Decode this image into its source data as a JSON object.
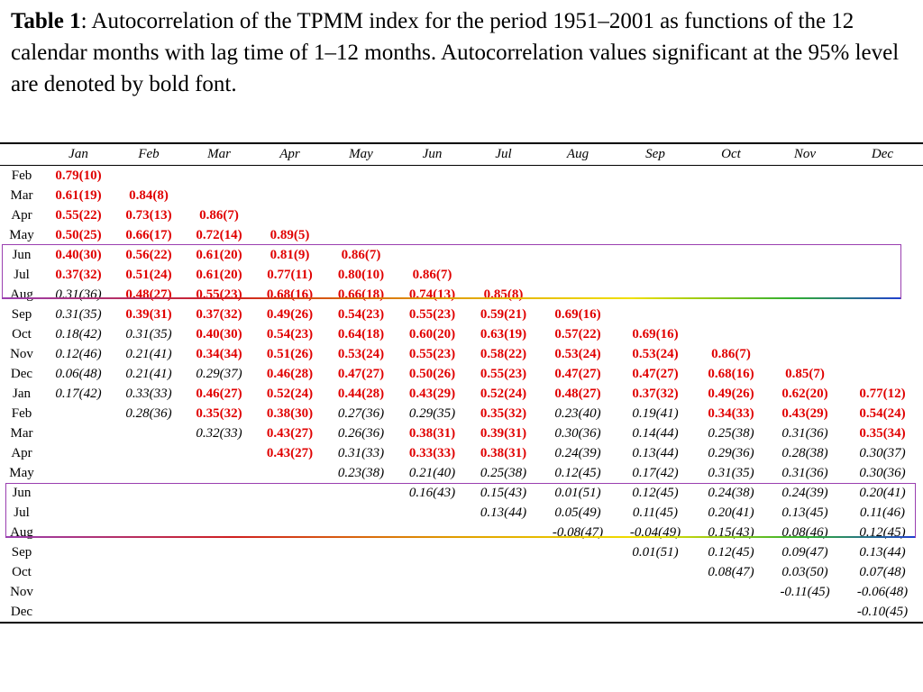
{
  "caption": {
    "label": "Table 1",
    "text": ": Autocorrelation of the TPMM index for the period 1951–2001 as functions of the 12 calendar months with lag time of 1‒12 months. Autocorrelation values significant at the 95% level are denoted by bold font."
  },
  "table": {
    "columns": [
      "Jan",
      "Feb",
      "Mar",
      "Apr",
      "May",
      "Jun",
      "Jul",
      "Aug",
      "Sep",
      "Oct",
      "Nov",
      "Dec"
    ],
    "rows": [
      {
        "label": "Feb",
        "cells": [
          [
            "0.79(10)",
            1
          ]
        ]
      },
      {
        "label": "Mar",
        "cells": [
          [
            "0.61(19)",
            1
          ],
          [
            "0.84(8)",
            1
          ]
        ]
      },
      {
        "label": "Apr",
        "cells": [
          [
            "0.55(22)",
            1
          ],
          [
            "0.73(13)",
            1
          ],
          [
            "0.86(7)",
            1
          ]
        ]
      },
      {
        "label": "May",
        "cells": [
          [
            "0.50(25)",
            1
          ],
          [
            "0.66(17)",
            1
          ],
          [
            "0.72(14)",
            1
          ],
          [
            "0.89(5)",
            1
          ]
        ]
      },
      {
        "label": "Jun",
        "cells": [
          [
            "0.40(30)",
            1
          ],
          [
            "0.56(22)",
            1
          ],
          [
            "0.61(20)",
            1
          ],
          [
            "0.81(9)",
            1
          ],
          [
            "0.86(7)",
            1
          ]
        ]
      },
      {
        "label": "Jul",
        "cells": [
          [
            "0.37(32)",
            1
          ],
          [
            "0.51(24)",
            1
          ],
          [
            "0.61(20)",
            1
          ],
          [
            "0.77(11)",
            1
          ],
          [
            "0.80(10)",
            1
          ],
          [
            "0.86(7)",
            1
          ]
        ]
      },
      {
        "label": "Aug",
        "cells": [
          [
            "0.31(36)",
            0
          ],
          [
            "0.48(27)",
            1
          ],
          [
            "0.55(23)",
            1
          ],
          [
            "0.68(16)",
            1
          ],
          [
            "0.66(18)",
            1
          ],
          [
            "0.74(13)",
            1
          ],
          [
            "0.85(8)",
            1
          ]
        ]
      },
      {
        "label": "Sep",
        "cells": [
          [
            "0.31(35)",
            0
          ],
          [
            "0.39(31)",
            1
          ],
          [
            "0.37(32)",
            1
          ],
          [
            "0.49(26)",
            1
          ],
          [
            "0.54(23)",
            1
          ],
          [
            "0.55(23)",
            1
          ],
          [
            "0.59(21)",
            1
          ],
          [
            "0.69(16)",
            1
          ]
        ]
      },
      {
        "label": "Oct",
        "cells": [
          [
            "0.18(42)",
            0
          ],
          [
            "0.31(35)",
            0
          ],
          [
            "0.40(30)",
            1
          ],
          [
            "0.54(23)",
            1
          ],
          [
            "0.64(18)",
            1
          ],
          [
            "0.60(20)",
            1
          ],
          [
            "0.63(19)",
            1
          ],
          [
            "0.57(22)",
            1
          ],
          [
            "0.69(16)",
            1
          ]
        ]
      },
      {
        "label": "Nov",
        "cells": [
          [
            "0.12(46)",
            0
          ],
          [
            "0.21(41)",
            0
          ],
          [
            "0.34(34)",
            1
          ],
          [
            "0.51(26)",
            1
          ],
          [
            "0.53(24)",
            1
          ],
          [
            "0.55(23)",
            1
          ],
          [
            "0.58(22)",
            1
          ],
          [
            "0.53(24)",
            1
          ],
          [
            "0.53(24)",
            1
          ],
          [
            "0.86(7)",
            1
          ]
        ]
      },
      {
        "label": "Dec",
        "cells": [
          [
            "0.06(48)",
            0
          ],
          [
            "0.21(41)",
            0
          ],
          [
            "0.29(37)",
            0
          ],
          [
            "0.46(28)",
            1
          ],
          [
            "0.47(27)",
            1
          ],
          [
            "0.50(26)",
            1
          ],
          [
            "0.55(23)",
            1
          ],
          [
            "0.47(27)",
            1
          ],
          [
            "0.47(27)",
            1
          ],
          [
            "0.68(16)",
            1
          ],
          [
            "0.85(7)",
            1
          ]
        ]
      },
      {
        "label": "Jan",
        "cells": [
          [
            "0.17(42)",
            0
          ],
          [
            "0.33(33)",
            0
          ],
          [
            "0.46(27)",
            1
          ],
          [
            "0.52(24)",
            1
          ],
          [
            "0.44(28)",
            1
          ],
          [
            "0.43(29)",
            1
          ],
          [
            "0.52(24)",
            1
          ],
          [
            "0.48(27)",
            1
          ],
          [
            "0.37(32)",
            1
          ],
          [
            "0.49(26)",
            1
          ],
          [
            "0.62(20)",
            1
          ],
          [
            "0.77(12)",
            1
          ]
        ]
      },
      {
        "label": "Feb",
        "cells": [
          [
            "",
            0
          ],
          [
            "0.28(36)",
            0
          ],
          [
            "0.35(32)",
            1
          ],
          [
            "0.38(30)",
            1
          ],
          [
            "0.27(36)",
            0
          ],
          [
            "0.29(35)",
            0
          ],
          [
            "0.35(32)",
            1
          ],
          [
            "0.23(40)",
            0
          ],
          [
            "0.19(41)",
            0
          ],
          [
            "0.34(33)",
            1
          ],
          [
            "0.43(29)",
            1
          ],
          [
            "0.54(24)",
            1
          ]
        ]
      },
      {
        "label": "Mar",
        "cells": [
          [
            "",
            0
          ],
          [
            "",
            0
          ],
          [
            "0.32(33)",
            0
          ],
          [
            "0.43(27)",
            1
          ],
          [
            "0.26(36)",
            0
          ],
          [
            "0.38(31)",
            1
          ],
          [
            "0.39(31)",
            1
          ],
          [
            "0.30(36)",
            0
          ],
          [
            "0.14(44)",
            0
          ],
          [
            "0.25(38)",
            0
          ],
          [
            "0.31(36)",
            0
          ],
          [
            "0.35(34)",
            1
          ]
        ]
      },
      {
        "label": "Apr",
        "cells": [
          [
            "",
            0
          ],
          [
            "",
            0
          ],
          [
            "",
            0
          ],
          [
            "0.43(27)",
            1
          ],
          [
            "0.31(33)",
            0
          ],
          [
            "0.33(33)",
            1
          ],
          [
            "0.38(31)",
            1
          ],
          [
            "0.24(39)",
            0
          ],
          [
            "0.13(44)",
            0
          ],
          [
            "0.29(36)",
            0
          ],
          [
            "0.28(38)",
            0
          ],
          [
            "0.30(37)",
            0
          ]
        ]
      },
      {
        "label": "May",
        "cells": [
          [
            "",
            0
          ],
          [
            "",
            0
          ],
          [
            "",
            0
          ],
          [
            "",
            0
          ],
          [
            "0.23(38)",
            0
          ],
          [
            "0.21(40)",
            0
          ],
          [
            "0.25(38)",
            0
          ],
          [
            "0.12(45)",
            0
          ],
          [
            "0.17(42)",
            0
          ],
          [
            "0.31(35)",
            0
          ],
          [
            "0.31(36)",
            0
          ],
          [
            "0.30(36)",
            0
          ]
        ]
      },
      {
        "label": "Jun",
        "cells": [
          [
            "",
            0
          ],
          [
            "",
            0
          ],
          [
            "",
            0
          ],
          [
            "",
            0
          ],
          [
            "",
            0
          ],
          [
            "0.16(43)",
            0
          ],
          [
            "0.15(43)",
            0
          ],
          [
            "0.01(51)",
            0
          ],
          [
            "0.12(45)",
            0
          ],
          [
            "0.24(38)",
            0
          ],
          [
            "0.24(39)",
            0
          ],
          [
            "0.20(41)",
            0
          ]
        ]
      },
      {
        "label": "Jul",
        "cells": [
          [
            "",
            0
          ],
          [
            "",
            0
          ],
          [
            "",
            0
          ],
          [
            "",
            0
          ],
          [
            "",
            0
          ],
          [
            "",
            0
          ],
          [
            "0.13(44)",
            0
          ],
          [
            "0.05(49)",
            0
          ],
          [
            "0.11(45)",
            0
          ],
          [
            "0.20(41)",
            0
          ],
          [
            "0.13(45)",
            0
          ],
          [
            "0.11(46)",
            0
          ]
        ]
      },
      {
        "label": "Aug",
        "cells": [
          [
            "",
            0
          ],
          [
            "",
            0
          ],
          [
            "",
            0
          ],
          [
            "",
            0
          ],
          [
            "",
            0
          ],
          [
            "",
            0
          ],
          [
            "",
            0
          ],
          [
            "-0.08(47)",
            0
          ],
          [
            "-0.04(49)",
            0
          ],
          [
            "0.15(43)",
            0
          ],
          [
            "0.08(46)",
            0
          ],
          [
            "0.12(45)",
            0
          ]
        ]
      },
      {
        "label": "Sep",
        "cells": [
          [
            "",
            0
          ],
          [
            "",
            0
          ],
          [
            "",
            0
          ],
          [
            "",
            0
          ],
          [
            "",
            0
          ],
          [
            "",
            0
          ],
          [
            "",
            0
          ],
          [
            "",
            0
          ],
          [
            "0.01(51)",
            0
          ],
          [
            "0.12(45)",
            0
          ],
          [
            "0.09(47)",
            0
          ],
          [
            "0.13(44)",
            0
          ]
        ]
      },
      {
        "label": "Oct",
        "cells": [
          [
            "",
            0
          ],
          [
            "",
            0
          ],
          [
            "",
            0
          ],
          [
            "",
            0
          ],
          [
            "",
            0
          ],
          [
            "",
            0
          ],
          [
            "",
            0
          ],
          [
            "",
            0
          ],
          [
            "",
            0
          ],
          [
            "0.08(47)",
            0
          ],
          [
            "0.03(50)",
            0
          ],
          [
            "0.07(48)",
            0
          ]
        ]
      },
      {
        "label": "Nov",
        "cells": [
          [
            "",
            0
          ],
          [
            "",
            0
          ],
          [
            "",
            0
          ],
          [
            "",
            0
          ],
          [
            "",
            0
          ],
          [
            "",
            0
          ],
          [
            "",
            0
          ],
          [
            "",
            0
          ],
          [
            "",
            0
          ],
          [
            "",
            0
          ],
          [
            "-0.11(45)",
            0
          ],
          [
            "-0.06(48)",
            0
          ]
        ]
      },
      {
        "label": "Dec",
        "cells": [
          [
            "",
            0
          ],
          [
            "",
            0
          ],
          [
            "",
            0
          ],
          [
            "",
            0
          ],
          [
            "",
            0
          ],
          [
            "",
            0
          ],
          [
            "",
            0
          ],
          [
            "",
            0
          ],
          [
            "",
            0
          ],
          [
            "",
            0
          ],
          [
            "",
            0
          ],
          [
            "-0.10(45)",
            0
          ]
        ]
      }
    ]
  },
  "colors": {
    "significant": "#e00000",
    "highlight_border": "#9a3fb0"
  }
}
